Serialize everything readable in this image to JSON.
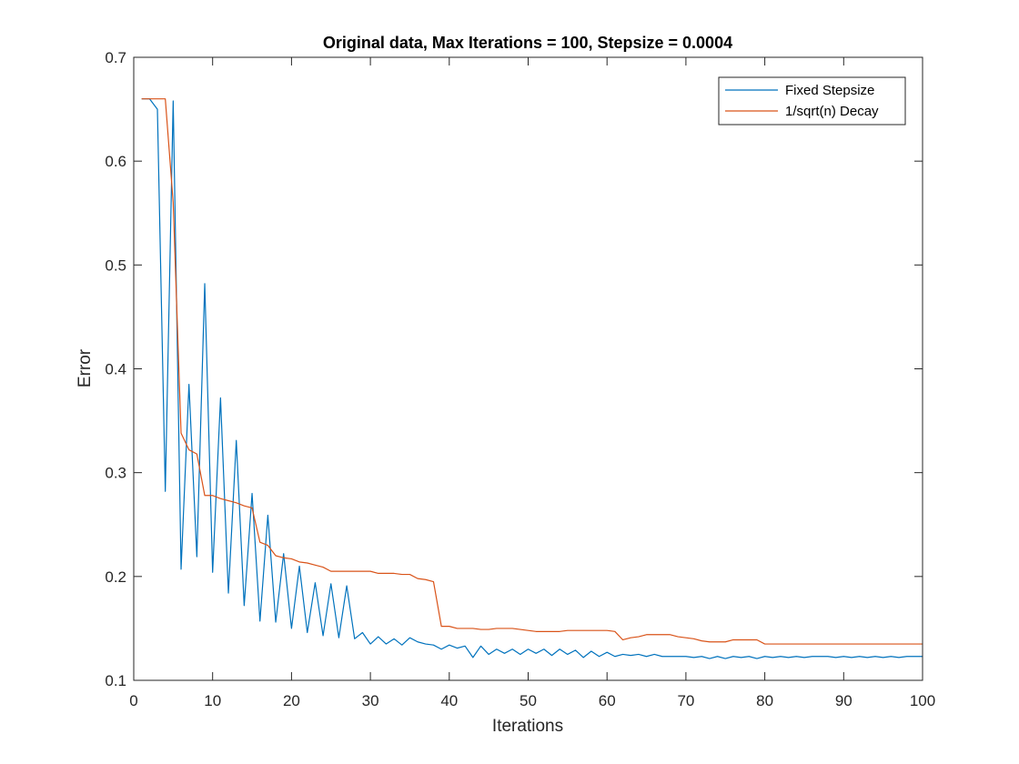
{
  "chart_data": {
    "type": "line",
    "title": "Original data, Max Iterations = 100, Stepsize = 0.0004",
    "xlabel": "Iterations",
    "ylabel": "Error",
    "xlim": [
      0,
      100
    ],
    "ylim": [
      0.1,
      0.7
    ],
    "xticks": [
      0,
      10,
      20,
      30,
      40,
      50,
      60,
      70,
      80,
      90,
      100
    ],
    "yticks": [
      0.1,
      0.2,
      0.3,
      0.4,
      0.5,
      0.6,
      0.7
    ],
    "xtick_labels": [
      "0",
      "10",
      "20",
      "30",
      "40",
      "50",
      "60",
      "70",
      "80",
      "90",
      "100"
    ],
    "ytick_labels": [
      "0.1",
      "0.2",
      "0.3",
      "0.4",
      "0.5",
      "0.6",
      "0.7"
    ],
    "grid": false,
    "legend_position": "top-right",
    "x": [
      1,
      2,
      3,
      4,
      5,
      6,
      7,
      8,
      9,
      10,
      11,
      12,
      13,
      14,
      15,
      16,
      17,
      18,
      19,
      20,
      21,
      22,
      23,
      24,
      25,
      26,
      27,
      28,
      29,
      30,
      31,
      32,
      33,
      34,
      35,
      36,
      37,
      38,
      39,
      40,
      41,
      42,
      43,
      44,
      45,
      46,
      47,
      48,
      49,
      50,
      51,
      52,
      53,
      54,
      55,
      56,
      57,
      58,
      59,
      60,
      61,
      62,
      63,
      64,
      65,
      66,
      67,
      68,
      69,
      70,
      71,
      72,
      73,
      74,
      75,
      76,
      77,
      78,
      79,
      80,
      81,
      82,
      83,
      84,
      85,
      86,
      87,
      88,
      89,
      90,
      91,
      92,
      93,
      94,
      95,
      96,
      97,
      98,
      99,
      100
    ],
    "series": [
      {
        "name": "Fixed Stepsize",
        "color": "#0072BD",
        "values": [
          0.66,
          0.66,
          0.65,
          0.282,
          0.658,
          0.207,
          0.385,
          0.219,
          0.482,
          0.204,
          0.372,
          0.184,
          0.331,
          0.172,
          0.28,
          0.157,
          0.259,
          0.156,
          0.222,
          0.15,
          0.21,
          0.146,
          0.194,
          0.143,
          0.193,
          0.141,
          0.191,
          0.14,
          0.146,
          0.135,
          0.142,
          0.135,
          0.14,
          0.134,
          0.141,
          0.137,
          0.135,
          0.134,
          0.13,
          0.134,
          0.131,
          0.133,
          0.122,
          0.133,
          0.125,
          0.13,
          0.126,
          0.13,
          0.125,
          0.13,
          0.126,
          0.13,
          0.124,
          0.13,
          0.125,
          0.129,
          0.122,
          0.128,
          0.123,
          0.127,
          0.123,
          0.125,
          0.124,
          0.125,
          0.123,
          0.125,
          0.123,
          0.123,
          0.123,
          0.123,
          0.122,
          0.123,
          0.121,
          0.123,
          0.121,
          0.123,
          0.122,
          0.123,
          0.121,
          0.123,
          0.122,
          0.123,
          0.122,
          0.123,
          0.122,
          0.123,
          0.123,
          0.123,
          0.122,
          0.123,
          0.122,
          0.123,
          0.122,
          0.123,
          0.122,
          0.123,
          0.122,
          0.123,
          0.123,
          0.123
        ]
      },
      {
        "name": "1/sqrt(n) Decay",
        "color": "#D95319",
        "values": [
          0.66,
          0.66,
          0.66,
          0.66,
          0.56,
          0.338,
          0.322,
          0.318,
          0.278,
          0.278,
          0.275,
          0.273,
          0.271,
          0.268,
          0.266,
          0.233,
          0.23,
          0.22,
          0.218,
          0.217,
          0.214,
          0.213,
          0.211,
          0.209,
          0.205,
          0.205,
          0.205,
          0.205,
          0.205,
          0.205,
          0.203,
          0.203,
          0.203,
          0.202,
          0.202,
          0.198,
          0.197,
          0.195,
          0.152,
          0.152,
          0.15,
          0.15,
          0.15,
          0.149,
          0.149,
          0.15,
          0.15,
          0.15,
          0.149,
          0.148,
          0.147,
          0.147,
          0.147,
          0.147,
          0.148,
          0.148,
          0.148,
          0.148,
          0.148,
          0.148,
          0.147,
          0.139,
          0.141,
          0.142,
          0.144,
          0.144,
          0.144,
          0.144,
          0.142,
          0.141,
          0.14,
          0.138,
          0.137,
          0.137,
          0.137,
          0.139,
          0.139,
          0.139,
          0.139,
          0.135,
          0.135,
          0.135,
          0.135,
          0.135,
          0.135,
          0.135,
          0.135,
          0.135,
          0.135,
          0.135,
          0.135,
          0.135,
          0.135,
          0.135,
          0.135,
          0.135,
          0.135,
          0.135,
          0.135,
          0.135
        ]
      }
    ]
  }
}
